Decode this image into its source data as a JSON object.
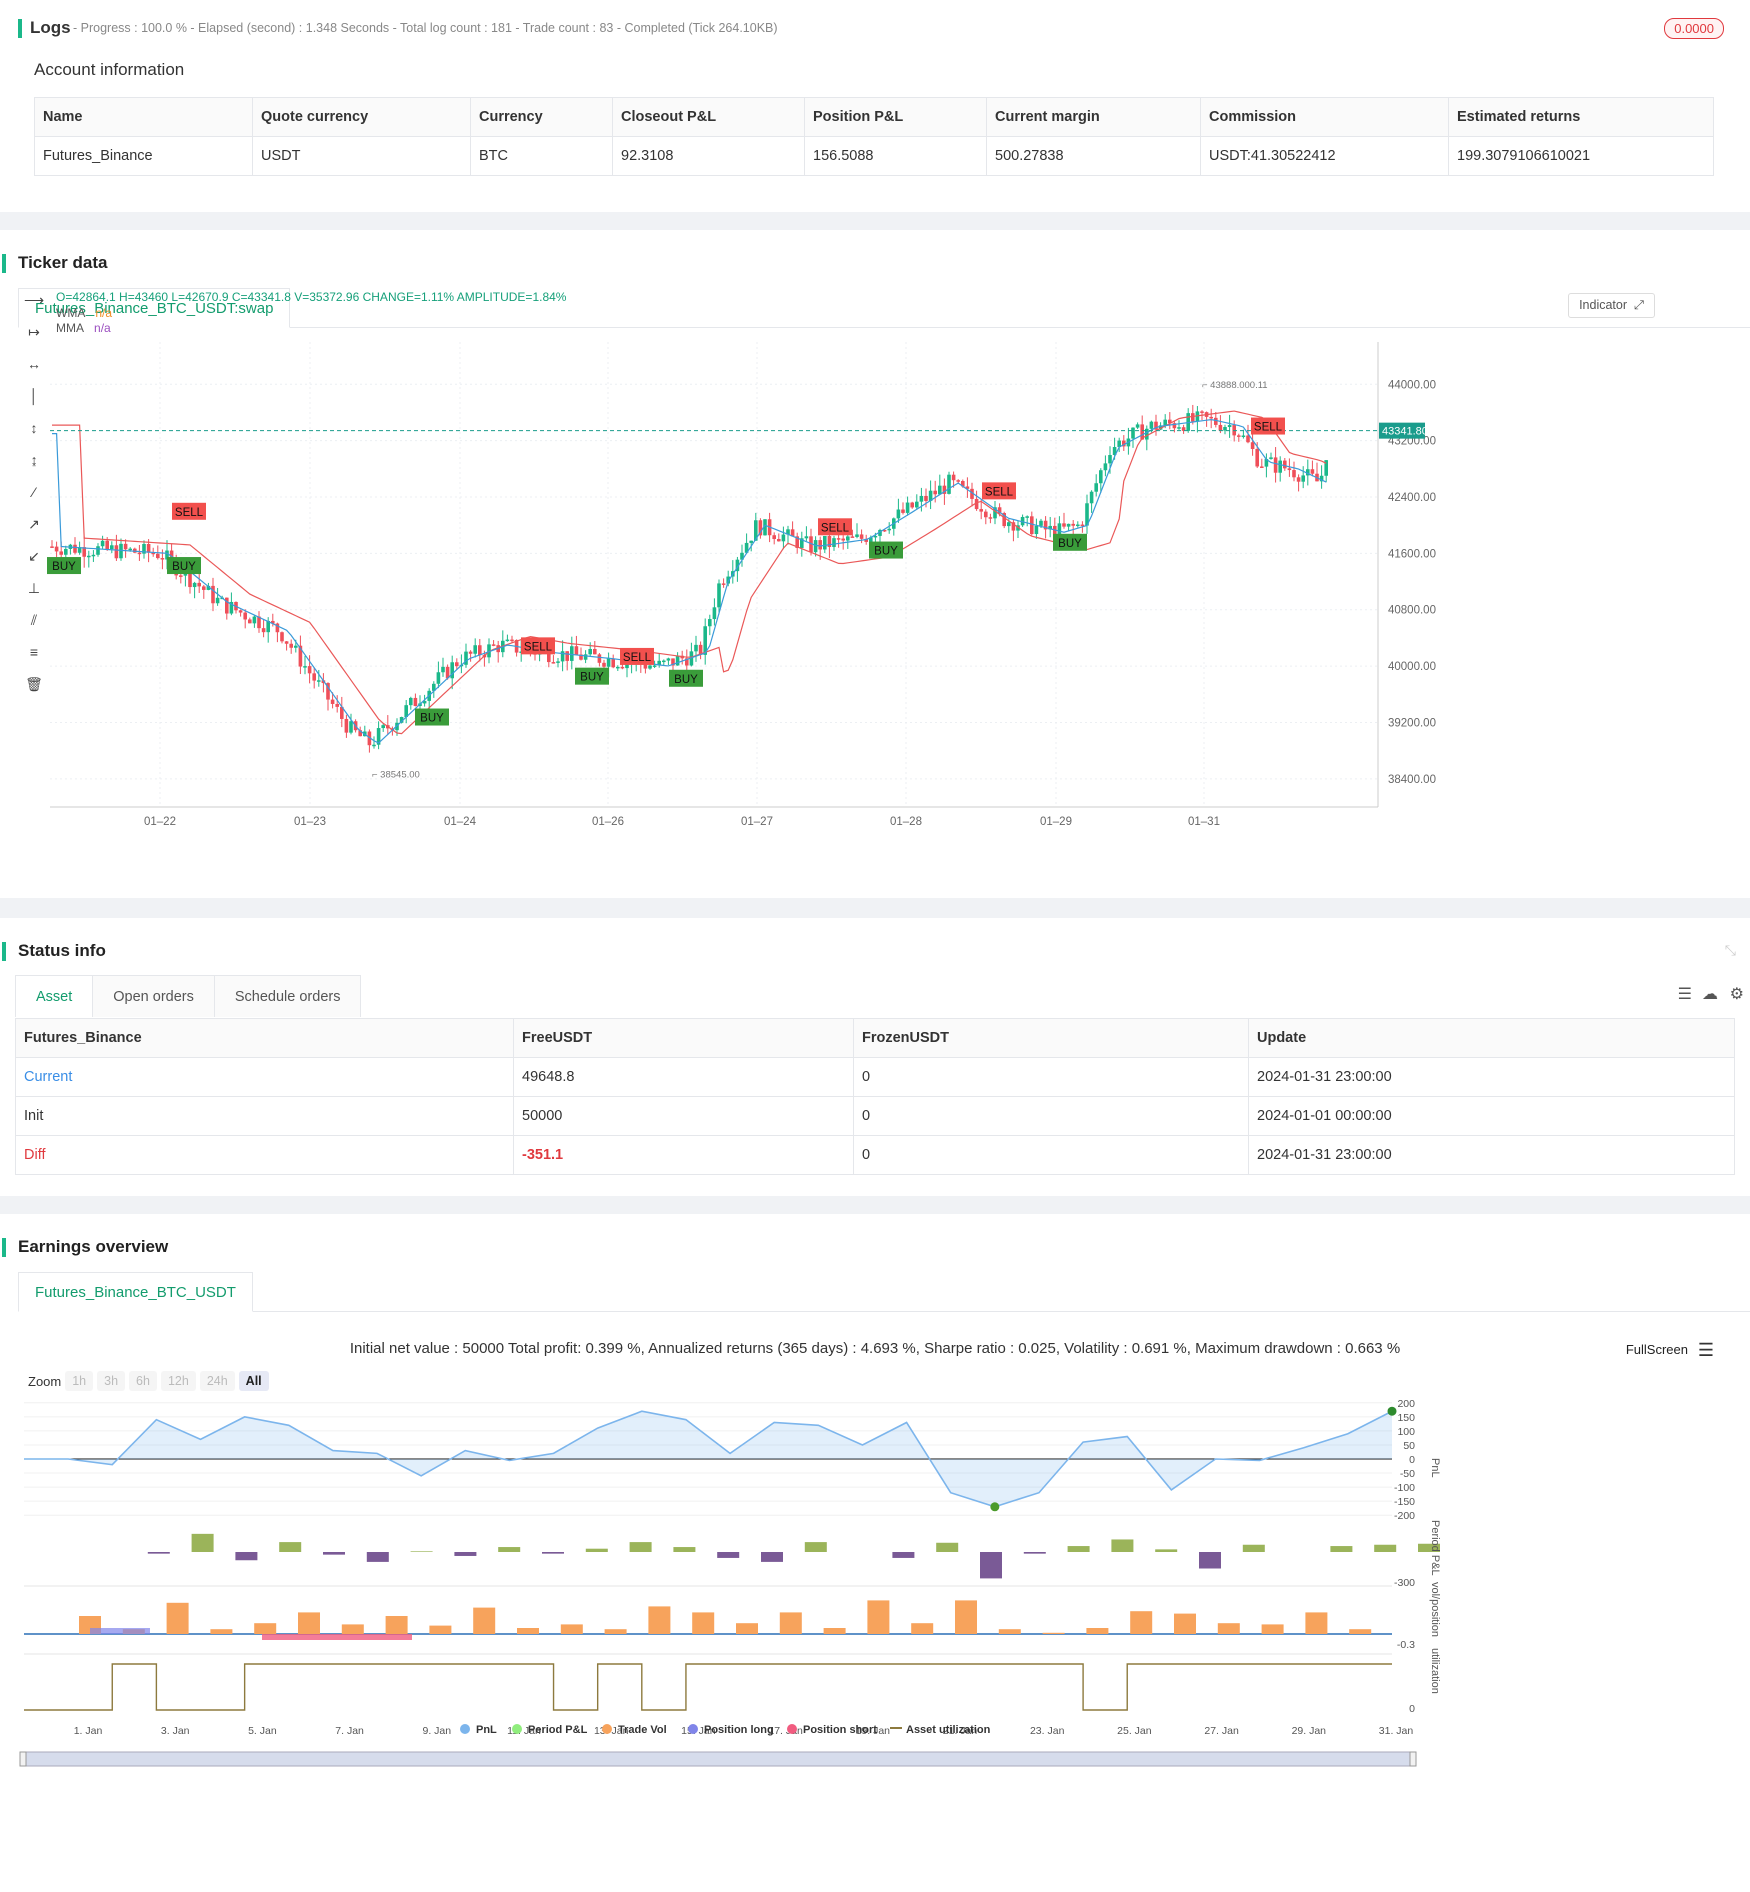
{
  "logs": {
    "title": "Logs",
    "stats": "- Progress : 100.0 % - Elapsed (second) : 1.348 Seconds - Total log count : 181 - Trade count : 83 - Completed (Tick 264.10KB)",
    "badge": "0.0000",
    "account_title": "Account information",
    "columns": [
      "Name",
      "Quote currency",
      "Currency",
      "Closeout P&L",
      "Position P&L",
      "Current margin",
      "Commission",
      "Estimated returns"
    ],
    "row": [
      "Futures_Binance",
      "USDT",
      "BTC",
      "92.3108",
      "156.5088",
      "500.27838",
      "USDT:41.30522412",
      "199.3079106610021"
    ]
  },
  "ticker": {
    "title": "Ticker data",
    "tab": "Futures_Binance_BTC_USDT:swap",
    "ohlc": "O=42864.1 H=43460 L=42670.9 C=43341.8 V=35372.96 CHANGE=1.11% AMPLITUDE=1.84%",
    "wma_label": "WMA",
    "wma_value": "n/a",
    "mma_label": "MMA",
    "mma_value": "n/a",
    "indicator_btn": "Indicator",
    "price_ticks": [
      "44000.00",
      "43200.00",
      "42400.00",
      "41600.00",
      "40800.00",
      "40000.00",
      "39200.00",
      "38400.00"
    ],
    "last_price": "43341.80",
    "x_ticks": [
      "01–22",
      "01–23",
      "01–24",
      "01–26",
      "01–27",
      "01–28",
      "01–29",
      "01–31"
    ],
    "high_label": "43888.000.11",
    "low_label": "38545.00",
    "colors": {
      "up": "#1bb88a",
      "down": "#ef4f5a",
      "wma": "#3a9ad9",
      "mma": "#ea5858",
      "accent": "#139c6d"
    }
  },
  "signals": [
    {
      "type": "BUY",
      "label": "BUY"
    },
    {
      "type": "BUY",
      "label": "BUY"
    },
    {
      "type": "SELL",
      "label": "SELL"
    },
    {
      "type": "BUY",
      "label": "BUY"
    },
    {
      "type": "SELL",
      "label": "SELL"
    },
    {
      "type": "BUY",
      "label": "BUY"
    },
    {
      "type": "SELL",
      "label": "SELL"
    },
    {
      "type": "BUY",
      "label": "BUY"
    },
    {
      "type": "SELL",
      "label": "SELL"
    },
    {
      "type": "BUY",
      "label": "BUY"
    },
    {
      "type": "SELL",
      "label": "SELL"
    },
    {
      "type": "BUY",
      "label": "BUY"
    },
    {
      "type": "SELL",
      "label": "SELL"
    }
  ],
  "status": {
    "title": "Status info",
    "tabs": [
      "Asset",
      "Open orders",
      "Schedule orders"
    ],
    "columns": [
      "Futures_Binance",
      "FreeUSDT",
      "FrozenUSDT",
      "Update"
    ],
    "rows": [
      [
        "Current",
        "49648.8",
        "0",
        "2024-01-31 23:00:00"
      ],
      [
        "Init",
        "50000",
        "0",
        "2024-01-01 00:00:00"
      ],
      [
        "Diff",
        "-351.1",
        "0",
        "2024-01-31 23:00:00"
      ]
    ]
  },
  "earnings": {
    "title": "Earnings overview",
    "tab": "Futures_Binance_BTC_USDT",
    "summary": "Initial net value : 50000 Total profit: 0.399 %, Annualized returns (365 days) : 4.693 %, Sharpe ratio : 0.025, Volatility : 0.691 %, Maximum drawdown : 0.663 %",
    "fullscreen": "FullScreen",
    "zoom_label": "Zoom",
    "zoom_buttons": [
      "1h",
      "3h",
      "6h",
      "12h",
      "24h",
      "All"
    ],
    "pnl_ticks": [
      "200",
      "150",
      "100",
      "50",
      "0",
      "-50",
      "-100",
      "-150",
      "-200"
    ],
    "x_ticks": [
      "1. Jan",
      "3. Jan",
      "5. Jan",
      "7. Jan",
      "9. Jan",
      "11. Jan",
      "13. Jan",
      "15. Jan",
      "17. Jan",
      "19. Jan",
      "21. Jan",
      "23. Jan",
      "25. Jan",
      "27. Jan",
      "29. Jan",
      "31. Jan"
    ],
    "axis_titles": [
      "PnL",
      "Period P&L",
      "vol/position",
      "utilization"
    ],
    "period_tick": "-300",
    "vol_tick": "-0.3",
    "util_tick": "0",
    "legend": [
      "PnL",
      "Period P&L",
      "Trade Vol",
      "Position long",
      "Position short",
      "Asset utilization"
    ],
    "legend_colors": [
      "#7cb5ec",
      "#90ed7d",
      "#f7a35c",
      "#8085e9",
      "#f15c80",
      "#8d7a3e"
    ],
    "pnl_series": [
      0,
      0,
      -20,
      140,
      70,
      150,
      120,
      30,
      20,
      -60,
      30,
      -5,
      20,
      110,
      170,
      140,
      20,
      130,
      120,
      50,
      130,
      -120,
      -170,
      -120,
      60,
      80,
      -110,
      0,
      -5,
      40,
      90,
      170
    ],
    "period_series": [
      0,
      -5,
      55,
      -25,
      30,
      -8,
      -30,
      2,
      -12,
      15,
      -5,
      10,
      30,
      15,
      -18,
      -30,
      30,
      0,
      -18,
      28,
      -80,
      -5,
      18,
      38,
      8,
      -50,
      22,
      0,
      18,
      22,
      25
    ],
    "vol_series": [
      30,
      8,
      52,
      8,
      18,
      36,
      16,
      30,
      14,
      44,
      10,
      16,
      8,
      46,
      36,
      18,
      36,
      10,
      56,
      18,
      56,
      8,
      2,
      10,
      38,
      34,
      18,
      16,
      36,
      8
    ],
    "util_series": [
      0,
      0,
      1,
      0,
      0,
      1,
      1,
      1,
      1,
      1,
      1,
      1,
      0,
      1,
      0,
      1,
      1,
      1,
      1,
      1,
      1,
      1,
      1,
      1,
      0,
      1,
      1,
      1,
      1,
      1,
      1,
      1
    ]
  }
}
